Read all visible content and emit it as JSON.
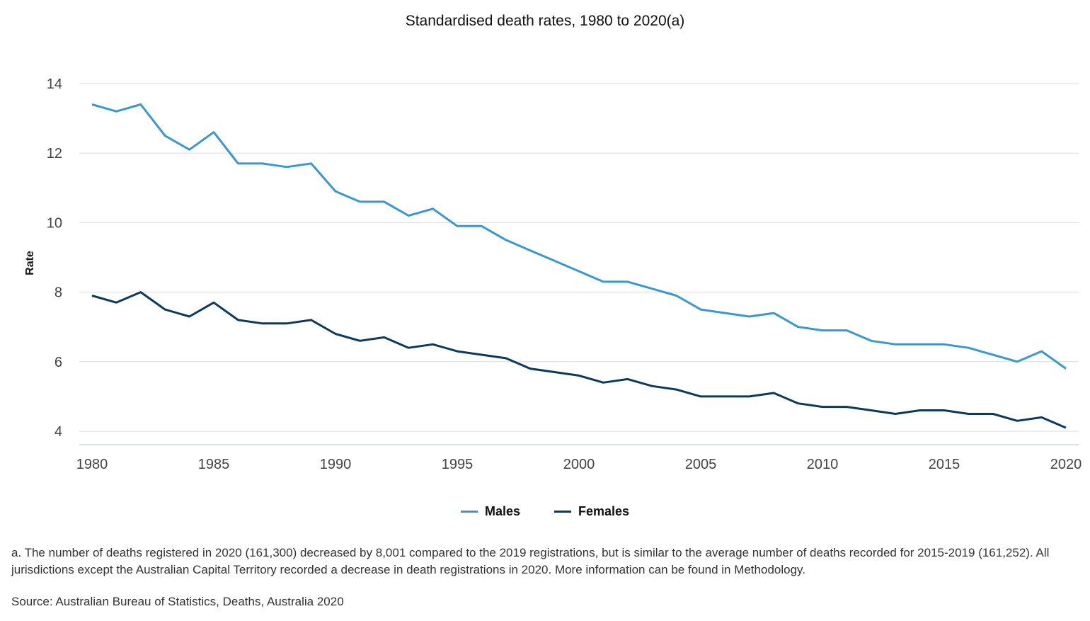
{
  "chart_data": {
    "type": "line",
    "title": "Standardised death rates, 1980 to 2020(a)",
    "xlabel": "",
    "ylabel": "Rate",
    "ylim": [
      4,
      14
    ],
    "yticks": [
      "4",
      "6",
      "8",
      "10",
      "12",
      "14"
    ],
    "xticks": [
      "1980",
      "1985",
      "1990",
      "1995",
      "2000",
      "2005",
      "2010",
      "2015",
      "2020"
    ],
    "xrange": [
      1980,
      2020
    ],
    "grid": true,
    "legend": "bottom-center",
    "x": [
      1980,
      1981,
      1982,
      1983,
      1984,
      1985,
      1986,
      1987,
      1988,
      1989,
      1990,
      1991,
      1992,
      1993,
      1994,
      1995,
      1996,
      1997,
      1998,
      1999,
      2000,
      2001,
      2002,
      2003,
      2004,
      2005,
      2006,
      2007,
      2008,
      2009,
      2010,
      2011,
      2012,
      2013,
      2014,
      2015,
      2016,
      2017,
      2018,
      2019,
      2020
    ],
    "series": [
      {
        "name": "Males",
        "color": "#3b97cf",
        "values": [
          13.4,
          13.2,
          13.4,
          12.5,
          12.1,
          12.6,
          11.7,
          11.7,
          11.6,
          11.7,
          10.9,
          10.6,
          10.6,
          10.2,
          10.4,
          9.9,
          9.9,
          9.5,
          9.2,
          8.9,
          8.6,
          8.3,
          8.3,
          8.1,
          7.9,
          7.5,
          7.4,
          7.3,
          7.4,
          7.0,
          6.9,
          6.9,
          6.6,
          6.5,
          6.5,
          6.5,
          6.4,
          6.2,
          6.0,
          6.3,
          5.8
        ]
      },
      {
        "name": "Females",
        "color": "#0d3a5c",
        "values": [
          7.9,
          7.7,
          8.0,
          7.5,
          7.3,
          7.7,
          7.2,
          7.1,
          7.1,
          7.2,
          6.8,
          6.6,
          6.7,
          6.4,
          6.5,
          6.3,
          6.2,
          6.1,
          5.8,
          5.7,
          5.6,
          5.4,
          5.5,
          5.3,
          5.2,
          5.0,
          5.0,
          5.0,
          5.1,
          4.8,
          4.7,
          4.7,
          4.6,
          4.5,
          4.6,
          4.6,
          4.5,
          4.5,
          4.3,
          4.4,
          4.1
        ]
      }
    ]
  },
  "footnote": "a. The number of deaths registered in 2020 (161,300) decreased by 8,001 compared to the 2019 registrations, but is similar to the average number of deaths recorded for 2015-2019 (161,252). All jurisdictions except the Australian Capital Territory recorded a decrease in death registrations in 2020. More information can be found in Methodology.",
  "source": "Source: Australian Bureau of Statistics, Deaths, Australia 2020"
}
